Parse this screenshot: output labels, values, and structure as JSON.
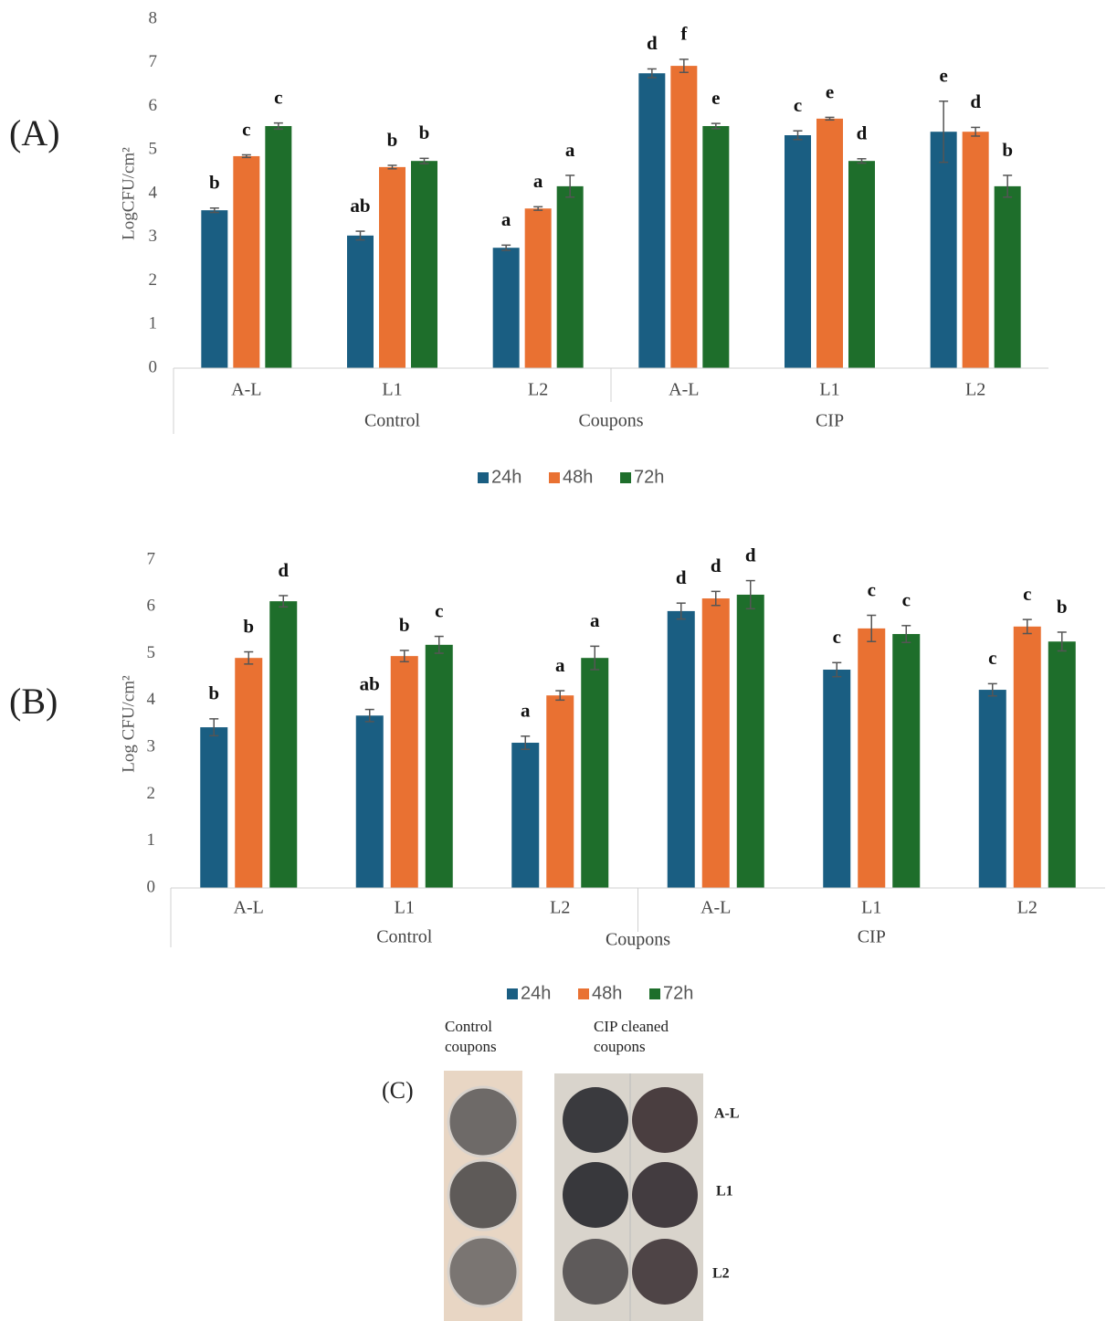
{
  "chart_data": [
    {
      "type": "bar",
      "panel_label": "(A)",
      "y_label": "LogCFU/cm²",
      "x_label": "Coupons",
      "groups": [
        {
          "name": "Control",
          "categories": [
            "A-L",
            "L1",
            "L2"
          ]
        },
        {
          "name": "CIP",
          "categories": [
            "A-L",
            "L1",
            "L2"
          ]
        }
      ],
      "series": [
        {
          "name": "24h",
          "color": "#1a5e82",
          "values": [
            3.62,
            3.04,
            2.76,
            6.76,
            5.34,
            5.42
          ],
          "errors": [
            0.05,
            0.1,
            0.06,
            0.1,
            0.1,
            0.7
          ],
          "letters": [
            "b",
            "ab",
            "a",
            "d",
            "c",
            "e"
          ]
        },
        {
          "name": "48h",
          "color": "#e97132",
          "values": [
            4.86,
            4.61,
            3.66,
            6.93,
            5.72,
            5.42
          ],
          "errors": [
            0.03,
            0.04,
            0.04,
            0.15,
            0.03,
            0.1
          ],
          "letters": [
            "c",
            "b",
            "a",
            "f",
            "e",
            "d"
          ]
        },
        {
          "name": "72h",
          "color": "#1e6e2b",
          "values": [
            5.55,
            4.75,
            4.17,
            5.55,
            4.75,
            4.17
          ],
          "errors": [
            0.07,
            0.06,
            0.25,
            0.06,
            0.05,
            0.25
          ],
          "letters": [
            "c",
            "b",
            "a",
            "e",
            "d",
            "b"
          ]
        }
      ],
      "ylim": [
        0,
        8
      ],
      "yticks": [
        0,
        1,
        2,
        3,
        4,
        5,
        6,
        7,
        8
      ],
      "legend": "bottom"
    },
    {
      "type": "bar",
      "panel_label": "(B)",
      "y_label": "Log CFU/cm²",
      "x_label": "Coupons",
      "groups": [
        {
          "name": "Control",
          "categories": [
            "A-L",
            "L1",
            "L2"
          ]
        },
        {
          "name": "CIP",
          "categories": [
            "A-L",
            "L1",
            "L2"
          ]
        }
      ],
      "series": [
        {
          "name": "24h",
          "color": "#1a5e82",
          "values": [
            3.43,
            3.68,
            3.1,
            5.91,
            4.66,
            4.23
          ],
          "errors": [
            0.18,
            0.13,
            0.14,
            0.17,
            0.15,
            0.13
          ],
          "letters": [
            "b",
            "ab",
            "a",
            "d",
            "c",
            "c"
          ]
        },
        {
          "name": "48h",
          "color": "#e97132",
          "values": [
            4.91,
            4.95,
            4.11,
            6.18,
            5.54,
            5.58
          ],
          "errors": [
            0.13,
            0.12,
            0.1,
            0.15,
            0.28,
            0.15
          ],
          "letters": [
            "b",
            "b",
            "a",
            "d",
            "c",
            "c"
          ]
        },
        {
          "name": "72h",
          "color": "#1e6e2b",
          "values": [
            6.12,
            5.19,
            4.91,
            6.26,
            5.42,
            5.26
          ],
          "errors": [
            0.12,
            0.18,
            0.25,
            0.3,
            0.18,
            0.2
          ],
          "letters": [
            "d",
            "c",
            "a",
            "d",
            "c",
            "b"
          ]
        }
      ],
      "ylim": [
        0,
        7
      ],
      "yticks": [
        0,
        1,
        2,
        3,
        4,
        5,
        6,
        7
      ],
      "legend": "bottom"
    }
  ],
  "photo": {
    "label": "(C)",
    "column_titles": [
      "Control coupons",
      "CIP cleaned coupons"
    ],
    "row_labels": [
      "A-L",
      "L1",
      "L2"
    ]
  }
}
